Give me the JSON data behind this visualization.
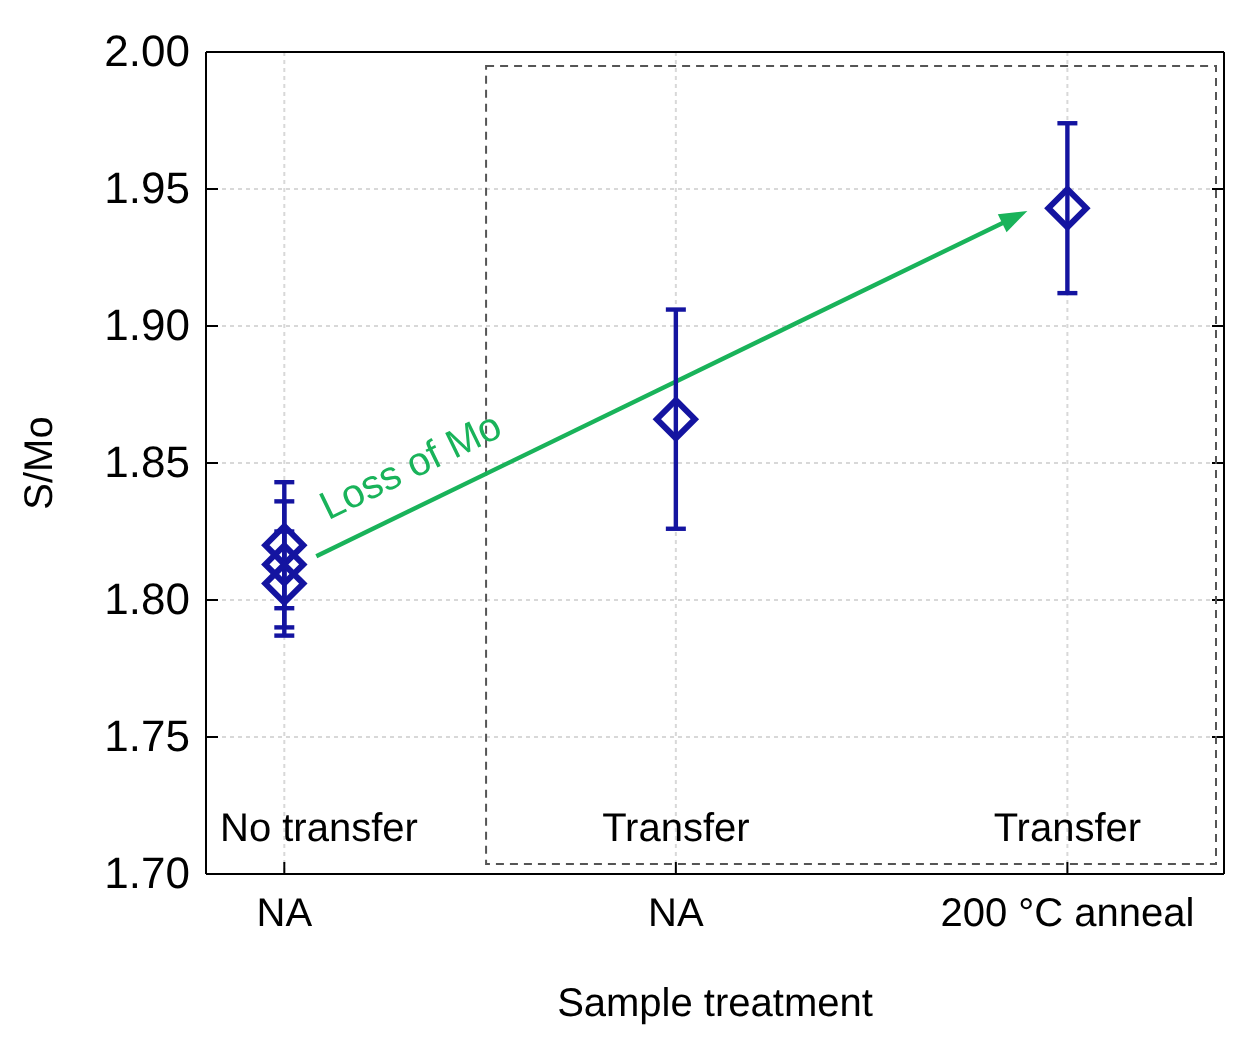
{
  "chart_data": {
    "type": "scatter",
    "xlabel": "Sample treatment",
    "ylabel": "S/Mo",
    "categories": [
      "NA",
      "NA",
      "200 °C anneal"
    ],
    "series": [
      {
        "color": "#1414a0",
        "values": [
          1.82,
          1.866,
          1.943
        ],
        "errors": [
          0.023,
          0.04,
          0.031
        ]
      },
      {
        "color": "#1414a0",
        "values": [
          1.813,
          null,
          null
        ],
        "errors": [
          0.023,
          null,
          null
        ]
      },
      {
        "color": "#1414a0",
        "values": [
          1.806,
          null,
          null
        ],
        "errors": [
          0.019,
          null,
          null
        ]
      }
    ],
    "marker": "diamond",
    "ylim": [
      1.7,
      2.0
    ],
    "yticks": [
      {
        "value": 1.7,
        "label": "1.70"
      },
      {
        "value": 1.75,
        "label": "1.75"
      },
      {
        "value": 1.8,
        "label": "1.80"
      },
      {
        "value": 1.85,
        "label": "1.85"
      },
      {
        "value": 1.9,
        "label": "1.90"
      },
      {
        "value": 1.95,
        "label": "1.95"
      },
      {
        "value": 2.0,
        "label": "2.00"
      }
    ],
    "grid": true,
    "annotations": [
      "Loss of Mo",
      "No transfer",
      "Transfer",
      "Transfer"
    ]
  }
}
